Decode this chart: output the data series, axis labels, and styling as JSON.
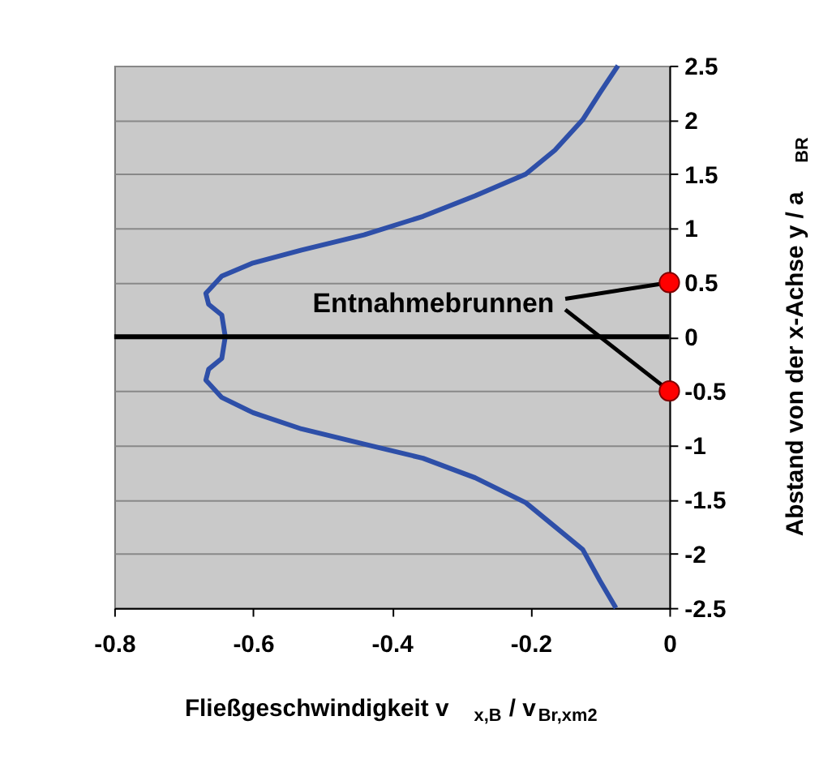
{
  "chart_data": {
    "type": "line",
    "xlabel": "Fließgeschwindigkeit   v$_{x,B}$ / v$_{Br,xm2}$",
    "ylabel": "Abstand von der x-Achse   y / a$_{BR}$",
    "xlim": [
      -0.8,
      0
    ],
    "xticks": [
      -0.8,
      -0.6,
      -0.4,
      -0.2,
      0
    ],
    "ylim": [
      -2.5,
      2.5
    ],
    "yticks": [
      -2.5,
      -2,
      -1.5,
      -1,
      -0.5,
      0,
      0.5,
      1,
      1.5,
      2,
      2.5
    ],
    "grid": "y",
    "legend": false,
    "marker": "none",
    "line_style": "solid",
    "series": [
      {
        "color": "#2e4fa8",
        "x": [
          -0.077,
          -0.1,
          -0.125,
          -0.165,
          -0.207,
          -0.28,
          -0.355,
          -0.44,
          -0.53,
          -0.6,
          -0.645,
          -0.668,
          -0.664,
          -0.645,
          -0.64,
          -0.645,
          -0.664,
          -0.668,
          -0.645,
          -0.6,
          -0.53,
          -0.44,
          -0.355,
          -0.28,
          -0.207,
          -0.165,
          -0.125,
          -0.1,
          -0.074
        ],
        "values": [
          -2.5,
          -2.25,
          -1.96,
          -1.75,
          -1.53,
          -1.3,
          -1.12,
          -0.99,
          -0.85,
          -0.7,
          -0.56,
          -0.4,
          -0.3,
          -0.2,
          0,
          0.2,
          0.3,
          0.4,
          0.56,
          0.68,
          0.8,
          0.94,
          1.11,
          1.3,
          1.5,
          1.72,
          2.0,
          2.25,
          2.5
        ]
      },
      {
        "type": "scatter",
        "color": "#ff0000",
        "marker": "circle",
        "x": [
          0,
          0
        ],
        "values": [
          0.5,
          -0.5
        ]
      }
    ],
    "ref_lines": [
      {
        "axis": "y",
        "value": 0,
        "color": "#000000"
      }
    ],
    "annotations": [
      {
        "text": "Entnahmebrunnen",
        "x": 0,
        "y": 0.5
      }
    ]
  }
}
